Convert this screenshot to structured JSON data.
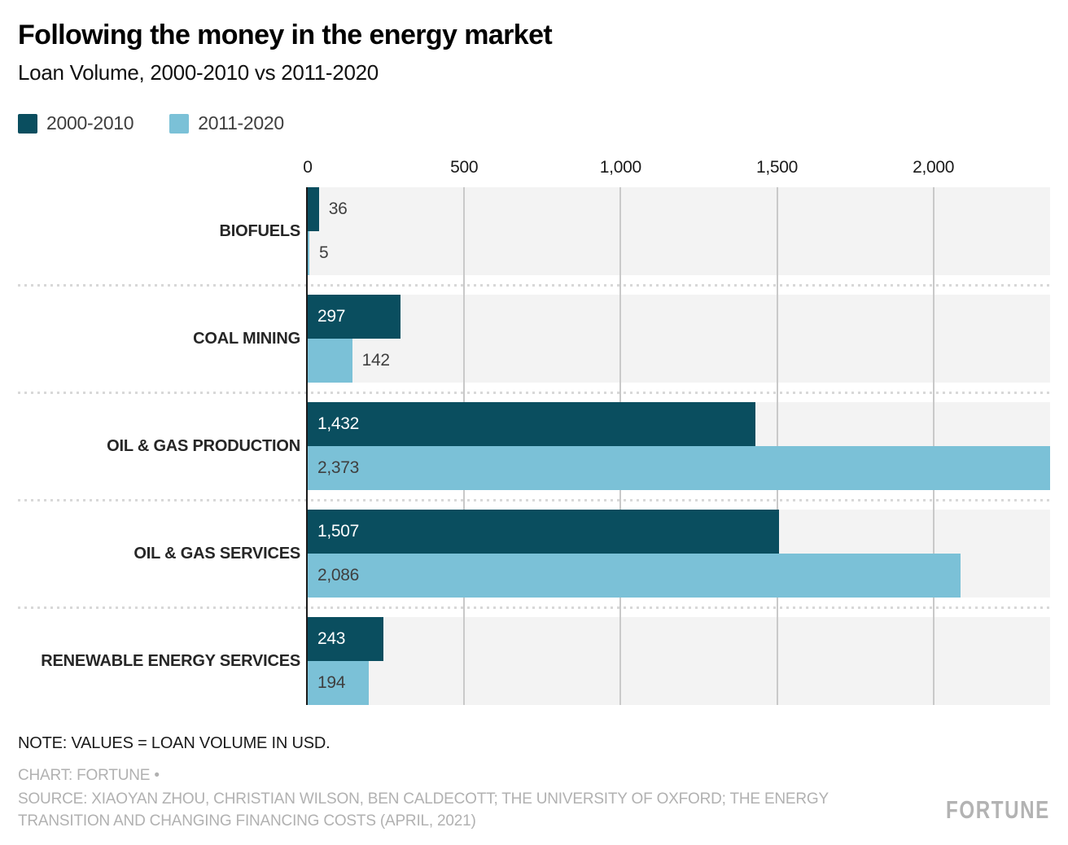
{
  "title": "Following the money in the energy market",
  "subtitle": "Loan Volume, 2000-2010 vs 2011-2020",
  "chart_data": {
    "type": "bar",
    "orientation": "horizontal",
    "title": "Following the money in the energy market",
    "subtitle": "Loan Volume, 2000-2010 vs 2011-2020",
    "categories": [
      "BIOFUELS",
      "COAL MINING",
      "OIL & GAS PRODUCTION",
      "OIL & GAS SERVICES",
      "RENEWABLE ENERGY SERVICES"
    ],
    "series": [
      {
        "name": "2000-2010",
        "color": "#0a4e5f",
        "values": [
          36,
          297,
          1432,
          1507,
          243
        ],
        "labels": [
          "36",
          "297",
          "1,432",
          "1,507",
          "243"
        ]
      },
      {
        "name": "2011-2020",
        "color": "#7bc1d7",
        "values": [
          5,
          142,
          2373,
          2086,
          194
        ],
        "labels": [
          "5",
          "142",
          "2,373",
          "2,086",
          "194"
        ]
      }
    ],
    "x_ticks": [
      {
        "value": 0,
        "label": "0"
      },
      {
        "value": 500,
        "label": "500"
      },
      {
        "value": 1000,
        "label": "1,000"
      },
      {
        "value": 1500,
        "label": "1,500"
      },
      {
        "value": 2000,
        "label": "2,000"
      }
    ],
    "xlim": [
      0,
      2373
    ],
    "xlabel": "",
    "ylabel": "",
    "grid": "vertical-gridlines-at-ticks",
    "legend_position": "top-left",
    "plot_background": "#f3f3f3",
    "gridline_color": "#c9c9c9",
    "axis_color": "#1a1a1a",
    "value_label_inside_dark": "#ffffff",
    "value_label_dark_text": "#3f3f3f"
  },
  "footer": {
    "note": "NOTE: VALUES = LOAN VOLUME IN USD.",
    "credit": "CHART: FORTUNE •",
    "source": "SOURCE: XIAOYAN ZHOU, CHRISTIAN WILSON, BEN CALDECOTT; THE UNIVERSITY OF OXFORD; THE ENERGY TRANSITION AND CHANGING FINANCING COSTS (APRIL, 2021)",
    "logo": "FORTUNE"
  }
}
